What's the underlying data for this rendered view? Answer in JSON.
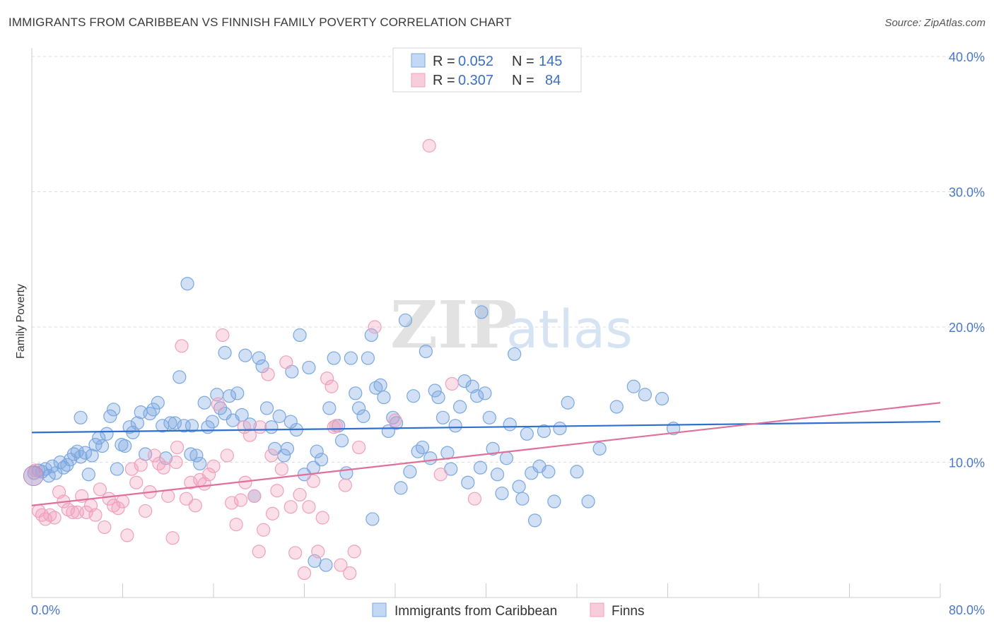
{
  "header": {
    "title": "IMMIGRANTS FROM CARIBBEAN VS FINNISH FAMILY POVERTY CORRELATION CHART",
    "source": "Source: ZipAtlas.com"
  },
  "watermark": {
    "zip": "ZIP",
    "atlas": "atlas"
  },
  "legend": {
    "rows": [
      {
        "r_label": "R =",
        "r_value": "0.052",
        "n_label": "N =",
        "n_value": "145",
        "color": "#a9c8f0"
      },
      {
        "r_label": "R =",
        "r_value": "0.307",
        "n_label": "N =",
        "n_value": "84",
        "color": "#f5b8cc"
      }
    ]
  },
  "bottom_legend": [
    {
      "label": "Immigrants from Caribbean",
      "color": "#a9c8f0"
    },
    {
      "label": "Finns",
      "color": "#f5b8cc"
    }
  ],
  "chart_data": {
    "type": "scatter",
    "title": "IMMIGRANTS FROM CARIBBEAN VS FINNISH FAMILY POVERTY CORRELATION CHART",
    "xlabel": "",
    "ylabel": "Family Poverty",
    "xlim": [
      0,
      80
    ],
    "ylim": [
      0,
      40
    ],
    "x_tick_labels": [
      "0.0%",
      "80.0%"
    ],
    "y_ticks": [
      10,
      20,
      30,
      40
    ],
    "y_tick_labels": [
      "10.0%",
      "20.0%",
      "30.0%",
      "40.0%"
    ],
    "grid": "horizontal dashed",
    "legend_position": "top-center",
    "series": [
      {
        "name": "Immigrants from Caribbean",
        "color": "#7aa7e0",
        "line_color": "#2f6fce",
        "trend": [
          [
            0,
            12.2
          ],
          [
            80,
            13.0
          ]
        ],
        "points": [
          [
            0.2,
            9.2
          ],
          [
            0.6,
            9.4
          ],
          [
            0.9,
            9.3
          ],
          [
            1.2,
            9.5
          ],
          [
            1.5,
            9.0
          ],
          [
            1.8,
            9.7
          ],
          [
            2.1,
            9.2
          ],
          [
            2.5,
            10.0
          ],
          [
            2.8,
            9.6
          ],
          [
            3.1,
            9.8
          ],
          [
            3.4,
            10.2
          ],
          [
            3.7,
            10.6
          ],
          [
            4.0,
            10.8
          ],
          [
            4.3,
            10.4
          ],
          [
            4.7,
            10.7
          ],
          [
            5.0,
            9.1
          ],
          [
            5.3,
            10.5
          ],
          [
            5.6,
            11.3
          ],
          [
            5.9,
            11.8
          ],
          [
            6.2,
            11.2
          ],
          [
            6.6,
            12.1
          ],
          [
            6.9,
            13.4
          ],
          [
            7.2,
            13.9
          ],
          [
            7.5,
            9.5
          ],
          [
            7.9,
            11.3
          ],
          [
            8.2,
            11.2
          ],
          [
            8.6,
            12.6
          ],
          [
            8.9,
            12.2
          ],
          [
            9.3,
            12.9
          ],
          [
            9.6,
            13.7
          ],
          [
            10.0,
            10.6
          ],
          [
            10.4,
            13.6
          ],
          [
            10.7,
            13.9
          ],
          [
            11.1,
            14.4
          ],
          [
            11.5,
            12.7
          ],
          [
            11.8,
            10.3
          ],
          [
            12.2,
            12.9
          ],
          [
            12.6,
            12.9
          ],
          [
            13.0,
            16.3
          ],
          [
            13.4,
            12.7
          ],
          [
            13.7,
            23.2
          ],
          [
            14.1,
            12.7
          ],
          [
            14.5,
            10.5
          ],
          [
            14.8,
            9.9
          ],
          [
            15.2,
            14.4
          ],
          [
            15.5,
            12.6
          ],
          [
            15.9,
            13.0
          ],
          [
            16.3,
            15.0
          ],
          [
            16.6,
            14.0
          ],
          [
            17.0,
            18.1
          ],
          [
            17.4,
            14.9
          ],
          [
            17.7,
            13.1
          ],
          [
            18.1,
            15.1
          ],
          [
            18.5,
            13.5
          ],
          [
            18.8,
            17.9
          ],
          [
            19.2,
            12.8
          ],
          [
            19.6,
            7.5
          ],
          [
            20.0,
            17.7
          ],
          [
            20.3,
            17.1
          ],
          [
            20.7,
            14.0
          ],
          [
            21.1,
            12.6
          ],
          [
            21.4,
            11.0
          ],
          [
            21.8,
            13.4
          ],
          [
            22.2,
            10.5
          ],
          [
            22.5,
            11.0
          ],
          [
            22.9,
            16.7
          ],
          [
            23.3,
            12.4
          ],
          [
            23.6,
            19.4
          ],
          [
            24.0,
            9.1
          ],
          [
            24.4,
            17.0
          ],
          [
            24.8,
            9.6
          ],
          [
            25.1,
            10.8
          ],
          [
            25.5,
            10.2
          ],
          [
            25.9,
            2.4
          ],
          [
            26.2,
            14.0
          ],
          [
            26.6,
            17.7
          ],
          [
            27.0,
            12.7
          ],
          [
            27.3,
            11.6
          ],
          [
            27.7,
            9.2
          ],
          [
            28.1,
            17.7
          ],
          [
            28.5,
            15.1
          ],
          [
            28.8,
            14.0
          ],
          [
            29.2,
            13.4
          ],
          [
            29.6,
            17.7
          ],
          [
            29.9,
            19.4
          ],
          [
            30.3,
            15.5
          ],
          [
            30.7,
            15.7
          ],
          [
            31.0,
            14.8
          ],
          [
            31.4,
            12.3
          ],
          [
            31.8,
            13.3
          ],
          [
            32.1,
            12.9
          ],
          [
            32.5,
            8.1
          ],
          [
            32.9,
            20.5
          ],
          [
            33.3,
            9.3
          ],
          [
            33.6,
            14.9
          ],
          [
            34.0,
            10.8
          ],
          [
            34.4,
            11.1
          ],
          [
            34.7,
            18.2
          ],
          [
            35.1,
            10.3
          ],
          [
            35.5,
            15.3
          ],
          [
            35.8,
            14.8
          ],
          [
            36.2,
            13.3
          ],
          [
            36.6,
            10.7
          ],
          [
            36.9,
            9.5
          ],
          [
            37.3,
            12.7
          ],
          [
            37.7,
            14.1
          ],
          [
            38.1,
            16.0
          ],
          [
            38.4,
            8.5
          ],
          [
            38.8,
            15.6
          ],
          [
            39.2,
            14.9
          ],
          [
            39.5,
            9.6
          ],
          [
            39.9,
            15.1
          ],
          [
            40.3,
            13.3
          ],
          [
            40.6,
            11.0
          ],
          [
            41.0,
            9.1
          ],
          [
            41.4,
            7.7
          ],
          [
            41.8,
            10.3
          ],
          [
            42.1,
            12.8
          ],
          [
            42.5,
            18.0
          ],
          [
            42.9,
            8.2
          ],
          [
            43.2,
            7.3
          ],
          [
            43.6,
            12.1
          ],
          [
            44.0,
            9.2
          ],
          [
            44.3,
            5.7
          ],
          [
            44.7,
            9.7
          ],
          [
            45.1,
            12.3
          ],
          [
            45.5,
            9.3
          ],
          [
            46.0,
            7.1
          ],
          [
            46.5,
            12.5
          ],
          [
            47.2,
            14.4
          ],
          [
            48.0,
            9.3
          ],
          [
            49.0,
            7.1
          ],
          [
            50.0,
            11.0
          ],
          [
            51.5,
            14.1
          ],
          [
            53.0,
            15.6
          ],
          [
            54.0,
            15.0
          ],
          [
            55.5,
            14.7
          ],
          [
            56.5,
            12.5
          ],
          [
            30.0,
            5.8
          ],
          [
            24.9,
            2.7
          ],
          [
            39.6,
            21.1
          ],
          [
            22.8,
            13.0
          ],
          [
            14.0,
            10.6
          ],
          [
            4.3,
            13.3
          ],
          [
            17.0,
            13.6
          ]
        ]
      },
      {
        "name": "Finns",
        "color": "#f0a0bc",
        "line_color": "#e0709a",
        "trend": [
          [
            0,
            6.8
          ],
          [
            80,
            14.4
          ]
        ],
        "points": [
          [
            0.3,
            9.4
          ],
          [
            0.6,
            6.4
          ],
          [
            0.9,
            6.1
          ],
          [
            1.2,
            5.8
          ],
          [
            1.6,
            6.1
          ],
          [
            2.0,
            5.9
          ],
          [
            2.4,
            7.8
          ],
          [
            2.8,
            7.1
          ],
          [
            3.2,
            6.5
          ],
          [
            3.6,
            6.3
          ],
          [
            4.0,
            6.3
          ],
          [
            4.4,
            7.5
          ],
          [
            4.8,
            6.3
          ],
          [
            5.2,
            6.8
          ],
          [
            5.6,
            6.1
          ],
          [
            6.0,
            8.0
          ],
          [
            6.4,
            5.2
          ],
          [
            6.8,
            7.3
          ],
          [
            7.2,
            6.8
          ],
          [
            7.6,
            6.6
          ],
          [
            8.0,
            7.1
          ],
          [
            8.4,
            4.6
          ],
          [
            8.8,
            9.5
          ],
          [
            9.2,
            8.5
          ],
          [
            9.6,
            9.8
          ],
          [
            10.0,
            6.4
          ],
          [
            10.4,
            7.8
          ],
          [
            10.8,
            10.5
          ],
          [
            11.2,
            9.9
          ],
          [
            11.6,
            9.6
          ],
          [
            12.0,
            7.5
          ],
          [
            12.4,
            4.4
          ],
          [
            12.8,
            11.1
          ],
          [
            13.2,
            18.6
          ],
          [
            13.6,
            7.3
          ],
          [
            14.0,
            8.5
          ],
          [
            14.4,
            6.8
          ],
          [
            14.8,
            8.7
          ],
          [
            15.2,
            8.4
          ],
          [
            15.6,
            9.1
          ],
          [
            16.0,
            9.7
          ],
          [
            16.4,
            14.3
          ],
          [
            16.8,
            19.4
          ],
          [
            17.2,
            10.5
          ],
          [
            17.6,
            7.0
          ],
          [
            18.0,
            5.4
          ],
          [
            18.4,
            7.2
          ],
          [
            18.8,
            8.5
          ],
          [
            19.2,
            12.0
          ],
          [
            19.6,
            7.5
          ],
          [
            20.0,
            3.4
          ],
          [
            20.4,
            5.0
          ],
          [
            20.8,
            16.5
          ],
          [
            21.2,
            6.2
          ],
          [
            21.6,
            7.9
          ],
          [
            22.0,
            9.5
          ],
          [
            22.4,
            17.4
          ],
          [
            22.8,
            6.7
          ],
          [
            23.2,
            3.3
          ],
          [
            23.6,
            7.6
          ],
          [
            24.0,
            1.8
          ],
          [
            24.4,
            6.7
          ],
          [
            24.8,
            8.6
          ],
          [
            25.2,
            3.4
          ],
          [
            25.6,
            5.9
          ],
          [
            26.0,
            16.2
          ],
          [
            26.4,
            15.6
          ],
          [
            26.8,
            12.7
          ],
          [
            27.2,
            2.4
          ],
          [
            27.6,
            8.3
          ],
          [
            28.0,
            1.8
          ],
          [
            28.4,
            3.4
          ],
          [
            28.8,
            11.1
          ],
          [
            30.2,
            20.0
          ],
          [
            32.0,
            13.1
          ],
          [
            35.0,
            33.4
          ],
          [
            36.0,
            9.1
          ],
          [
            37.0,
            15.8
          ],
          [
            39.0,
            7.3
          ],
          [
            12.7,
            10.0
          ],
          [
            20.1,
            12.6
          ],
          [
            18.7,
            12.6
          ],
          [
            21.1,
            10.5
          ],
          [
            26.6,
            12.6
          ]
        ]
      }
    ]
  }
}
